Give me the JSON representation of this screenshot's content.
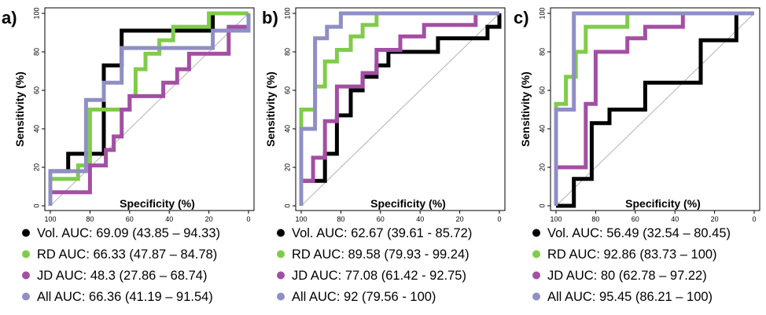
{
  "chart_data": [
    {
      "type": "line",
      "panel_label": "a)",
      "xlabel": "Specificity (%)",
      "ylabel": "Sensitivity (%)",
      "xlim": [
        100,
        0
      ],
      "ylim": [
        0,
        100
      ],
      "x_reversed": true,
      "xticks": [
        100,
        80,
        60,
        40,
        20,
        0
      ],
      "yticks": [
        0,
        20,
        40,
        60,
        80,
        100
      ],
      "diagonal_reference": true,
      "grid": false,
      "legend_position": "below",
      "series": [
        {
          "name": "Vol.",
          "legend_label": "Vol. AUC: 69.09 (43.85 – 94.33)",
          "color": "#000000",
          "points": [
            [
              100,
              0
            ],
            [
              100,
              18
            ],
            [
              91,
              18
            ],
            [
              91,
              27
            ],
            [
              73,
              27
            ],
            [
              73,
              73
            ],
            [
              64,
              73
            ],
            [
              64,
              91
            ],
            [
              18,
              91
            ],
            [
              18,
              100
            ],
            [
              0,
              100
            ]
          ]
        },
        {
          "name": "RD",
          "legend_label": "RD AUC: 66.33 (47.87 – 84.78)",
          "color": "#80cc4a",
          "points": [
            [
              100,
              0
            ],
            [
              100,
              14
            ],
            [
              86,
              14
            ],
            [
              86,
              21
            ],
            [
              80,
              21
            ],
            [
              80,
              50
            ],
            [
              60,
              50
            ],
            [
              60,
              57
            ],
            [
              57,
              57
            ],
            [
              57,
              71
            ],
            [
              52,
              71
            ],
            [
              52,
              79
            ],
            [
              45,
              79
            ],
            [
              45,
              86
            ],
            [
              38,
              86
            ],
            [
              38,
              93
            ],
            [
              20,
              93
            ],
            [
              20,
              100
            ],
            [
              0,
              100
            ]
          ]
        },
        {
          "name": "JD",
          "legend_label": "JD AUC: 48.3 (27.86 – 68.74)",
          "color": "#a34fa3",
          "points": [
            [
              100,
              0
            ],
            [
              100,
              7
            ],
            [
              80,
              7
            ],
            [
              80,
              21
            ],
            [
              72,
              21
            ],
            [
              72,
              29
            ],
            [
              68,
              29
            ],
            [
              68,
              36
            ],
            [
              64,
              36
            ],
            [
              64,
              50
            ],
            [
              60,
              50
            ],
            [
              60,
              57
            ],
            [
              43,
              57
            ],
            [
              43,
              64
            ],
            [
              36,
              64
            ],
            [
              36,
              71
            ],
            [
              30,
              71
            ],
            [
              30,
              79
            ],
            [
              10,
              79
            ],
            [
              10,
              93
            ],
            [
              0,
              93
            ]
          ]
        },
        {
          "name": "All",
          "legend_label": "All AUC: 66.36 (41.19 – 91.54)",
          "color": "#8f8fc4",
          "points": [
            [
              100,
              0
            ],
            [
              100,
              18
            ],
            [
              82,
              18
            ],
            [
              82,
              55
            ],
            [
              73,
              55
            ],
            [
              73,
              64
            ],
            [
              64,
              64
            ],
            [
              64,
              82
            ],
            [
              18,
              82
            ],
            [
              18,
              91
            ],
            [
              0,
              91
            ],
            [
              0,
              100
            ]
          ]
        }
      ]
    },
    {
      "type": "line",
      "panel_label": "b)",
      "xlabel": "Specificity (%)",
      "ylabel": "Sensitivity (%)",
      "xlim": [
        100,
        0
      ],
      "ylim": [
        0,
        100
      ],
      "x_reversed": true,
      "xticks": [
        100,
        80,
        60,
        40,
        20,
        0
      ],
      "yticks": [
        0,
        20,
        40,
        60,
        80,
        100
      ],
      "diagonal_reference": true,
      "grid": false,
      "legend_position": "below",
      "series": [
        {
          "name": "Vol.",
          "legend_label": "Vol. AUC: 62.67 (39.61 - 85.72)",
          "color": "#000000",
          "points": [
            [
              100,
              0
            ],
            [
              100,
              13
            ],
            [
              88,
              13
            ],
            [
              88,
              27
            ],
            [
              82,
              27
            ],
            [
              82,
              47
            ],
            [
              75,
              47
            ],
            [
              75,
              60
            ],
            [
              69,
              60
            ],
            [
              69,
              67
            ],
            [
              62,
              67
            ],
            [
              62,
              73
            ],
            [
              56,
              73
            ],
            [
              56,
              80
            ],
            [
              31,
              80
            ],
            [
              31,
              87
            ],
            [
              6,
              87
            ],
            [
              6,
              93
            ],
            [
              0,
              93
            ],
            [
              0,
              100
            ]
          ]
        },
        {
          "name": "RD",
          "legend_label": "RD AUC: 89.58 (79.93 - 99.24)",
          "color": "#80cc4a",
          "points": [
            [
              100,
              0
            ],
            [
              100,
              50
            ],
            [
              93,
              50
            ],
            [
              93,
              62
            ],
            [
              88,
              62
            ],
            [
              88,
              75
            ],
            [
              82,
              75
            ],
            [
              82,
              81
            ],
            [
              75,
              81
            ],
            [
              75,
              88
            ],
            [
              69,
              88
            ],
            [
              69,
              94
            ],
            [
              62,
              94
            ],
            [
              62,
              100
            ],
            [
              0,
              100
            ]
          ]
        },
        {
          "name": "JD",
          "legend_label": "JD AUC: 77.08 (61.42 - 92.75)",
          "color": "#a34fa3",
          "points": [
            [
              100,
              0
            ],
            [
              100,
              13
            ],
            [
              94,
              13
            ],
            [
              94,
              25
            ],
            [
              88,
              25
            ],
            [
              88,
              44
            ],
            [
              82,
              44
            ],
            [
              82,
              62
            ],
            [
              69,
              62
            ],
            [
              69,
              69
            ],
            [
              62,
              69
            ],
            [
              62,
              81
            ],
            [
              50,
              81
            ],
            [
              50,
              88
            ],
            [
              38,
              88
            ],
            [
              38,
              94
            ],
            [
              12,
              94
            ],
            [
              12,
              100
            ],
            [
              0,
              100
            ]
          ]
        },
        {
          "name": "All",
          "legend_label": "All AUC: 92 (79.56 - 100)",
          "color": "#8f8fc4",
          "points": [
            [
              100,
              0
            ],
            [
              100,
              40
            ],
            [
              93,
              40
            ],
            [
              93,
              87
            ],
            [
              87,
              87
            ],
            [
              87,
              93
            ],
            [
              80,
              93
            ],
            [
              80,
              100
            ],
            [
              0,
              100
            ]
          ]
        }
      ]
    },
    {
      "type": "line",
      "panel_label": "c)",
      "xlabel": "Specificity (%)",
      "ylabel": "Sensitivity (%)",
      "xlim": [
        100,
        0
      ],
      "ylim": [
        0,
        100
      ],
      "x_reversed": true,
      "xticks": [
        100,
        80,
        60,
        40,
        20,
        0
      ],
      "yticks": [
        0,
        20,
        40,
        60,
        80,
        100
      ],
      "diagonal_reference": true,
      "grid": false,
      "legend_position": "below",
      "series": [
        {
          "name": "Vol.",
          "legend_label": "Vol. AUC: 56.49 (32.54 – 80.45)",
          "color": "#000000",
          "points": [
            [
              100,
              0
            ],
            [
              91,
              0
            ],
            [
              91,
              14
            ],
            [
              82,
              14
            ],
            [
              82,
              43
            ],
            [
              73,
              43
            ],
            [
              73,
              50
            ],
            [
              55,
              50
            ],
            [
              55,
              64
            ],
            [
              27,
              64
            ],
            [
              27,
              86
            ],
            [
              9,
              86
            ],
            [
              9,
              100
            ],
            [
              0,
              100
            ]
          ]
        },
        {
          "name": "RD",
          "legend_label": "RD AUC: 92.86 (83.73 – 100)",
          "color": "#80cc4a",
          "points": [
            [
              100,
              0
            ],
            [
              100,
              53
            ],
            [
              95,
              53
            ],
            [
              95,
              67
            ],
            [
              90,
              67
            ],
            [
              90,
              80
            ],
            [
              85,
              80
            ],
            [
              85,
              93
            ],
            [
              64,
              93
            ],
            [
              64,
              100
            ],
            [
              0,
              100
            ]
          ]
        },
        {
          "name": "JD",
          "legend_label": "JD AUC: 80 (62.78 – 97.22)",
          "color": "#a34fa3",
          "points": [
            [
              100,
              0
            ],
            [
              100,
              20
            ],
            [
              85,
              20
            ],
            [
              85,
              53
            ],
            [
              80,
              53
            ],
            [
              80,
              80
            ],
            [
              64,
              80
            ],
            [
              64,
              87
            ],
            [
              55,
              87
            ],
            [
              55,
              93
            ],
            [
              36,
              93
            ],
            [
              36,
              100
            ],
            [
              0,
              100
            ]
          ]
        },
        {
          "name": "All",
          "legend_label": "All AUC: 95.45 (86.21 – 100)",
          "color": "#8f8fc4",
          "points": [
            [
              100,
              0
            ],
            [
              100,
              50
            ],
            [
              91,
              50
            ],
            [
              91,
              100
            ],
            [
              0,
              100
            ]
          ]
        }
      ]
    }
  ]
}
